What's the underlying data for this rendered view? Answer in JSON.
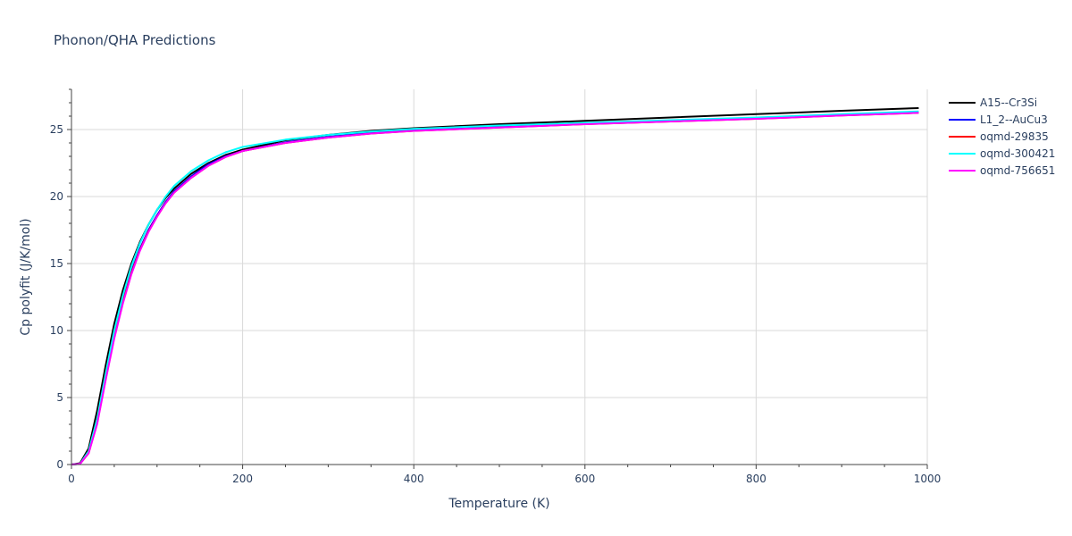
{
  "chart_data": {
    "type": "line",
    "title": "Phonon/QHA Predictions",
    "xlabel": "Temperature (K)",
    "ylabel": "Cp polyfit (J/K/mol)",
    "xlim": [
      0,
      1000
    ],
    "ylim": [
      0,
      28
    ],
    "x_ticks": [
      0,
      200,
      400,
      600,
      800,
      1000
    ],
    "y_ticks": [
      0,
      5,
      10,
      15,
      20,
      25
    ],
    "x_tick_labels": [
      "0",
      "200",
      "400",
      "600",
      "800",
      "1000"
    ],
    "y_tick_labels": [
      "0",
      "5",
      "10",
      "15",
      "20",
      "25"
    ],
    "grid": true,
    "legend_position": "top-right",
    "series": [
      {
        "name": "A15--Cr3Si",
        "color": "#000000",
        "x": [
          0,
          10,
          20,
          30,
          40,
          50,
          60,
          70,
          80,
          90,
          100,
          110,
          120,
          140,
          160,
          180,
          200,
          250,
          300,
          350,
          400,
          500,
          600,
          700,
          800,
          900,
          990
        ],
        "y": [
          0,
          0.1,
          1.2,
          4.0,
          7.4,
          10.5,
          13.0,
          15.0,
          16.6,
          17.9,
          19.0,
          19.9,
          20.6,
          21.7,
          22.5,
          23.1,
          23.5,
          24.2,
          24.6,
          24.9,
          25.1,
          25.4,
          25.65,
          25.9,
          26.15,
          26.4,
          26.6
        ]
      },
      {
        "name": "L1_2--AuCu3",
        "color": "#0000ff",
        "x": [
          0,
          10,
          20,
          30,
          40,
          50,
          60,
          70,
          80,
          90,
          100,
          110,
          120,
          140,
          160,
          180,
          200,
          250,
          300,
          350,
          400,
          500,
          600,
          700,
          800,
          900,
          990
        ],
        "y": [
          0,
          0.05,
          0.9,
          3.2,
          6.5,
          9.6,
          12.2,
          14.4,
          16.1,
          17.5,
          18.6,
          19.6,
          20.4,
          21.5,
          22.4,
          23.0,
          23.4,
          24.05,
          24.45,
          24.75,
          24.95,
          25.2,
          25.45,
          25.65,
          25.85,
          26.1,
          26.3
        ]
      },
      {
        "name": "oqmd-29835",
        "color": "#ff0000",
        "x": [
          0,
          10,
          20,
          30,
          40,
          50,
          60,
          70,
          80,
          90,
          100,
          110,
          120,
          140,
          160,
          180,
          200,
          250,
          300,
          350,
          400,
          500,
          600,
          700,
          800,
          900,
          990
        ],
        "y": [
          0,
          0.05,
          0.85,
          3.1,
          6.4,
          9.5,
          12.1,
          14.3,
          16.0,
          17.4,
          18.5,
          19.5,
          20.3,
          21.4,
          22.3,
          22.95,
          23.4,
          24.0,
          24.4,
          24.7,
          24.9,
          25.15,
          25.4,
          25.6,
          25.8,
          26.05,
          26.25
        ]
      },
      {
        "name": "oqmd-300421",
        "color": "#00ffff",
        "x": [
          0,
          10,
          20,
          30,
          40,
          50,
          60,
          70,
          80,
          90,
          100,
          110,
          120,
          140,
          160,
          180,
          200,
          250,
          300,
          350,
          400,
          500,
          600,
          700,
          800,
          900,
          990
        ],
        "y": [
          0,
          0.05,
          1.0,
          3.4,
          6.8,
          10.0,
          12.6,
          14.8,
          16.5,
          17.9,
          19.0,
          20.0,
          20.8,
          21.9,
          22.7,
          23.3,
          23.7,
          24.25,
          24.6,
          24.85,
          25.05,
          25.3,
          25.5,
          25.7,
          25.9,
          26.15,
          26.35
        ]
      },
      {
        "name": "oqmd-756651",
        "color": "#ff00ff",
        "x": [
          0,
          10,
          20,
          30,
          40,
          50,
          60,
          70,
          80,
          90,
          100,
          110,
          120,
          140,
          160,
          180,
          200,
          250,
          300,
          350,
          400,
          500,
          600,
          700,
          800,
          900,
          990
        ],
        "y": [
          0,
          0.05,
          0.85,
          3.0,
          6.3,
          9.4,
          12.0,
          14.2,
          15.95,
          17.35,
          18.5,
          19.5,
          20.3,
          21.4,
          22.3,
          22.95,
          23.4,
          24.0,
          24.4,
          24.7,
          24.9,
          25.15,
          25.4,
          25.6,
          25.8,
          26.05,
          26.25
        ]
      }
    ]
  }
}
